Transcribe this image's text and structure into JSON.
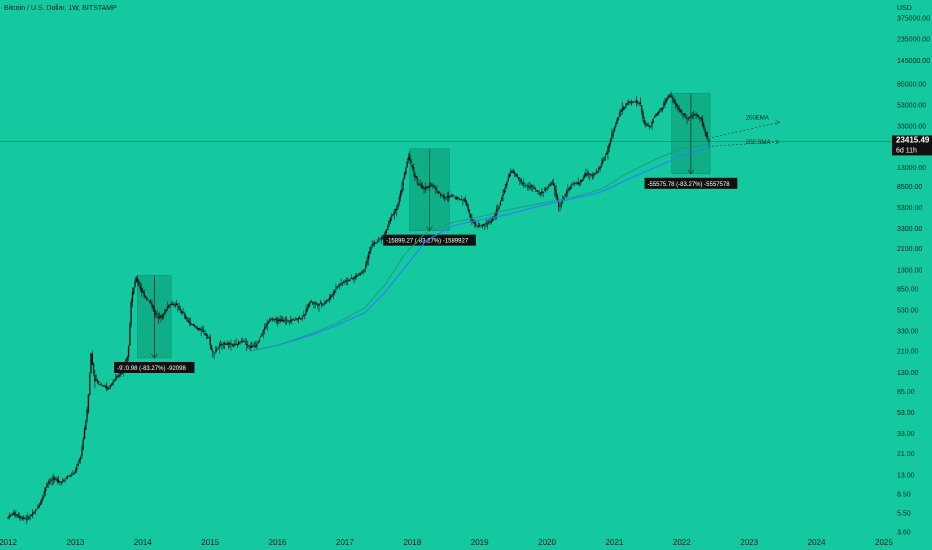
{
  "header": {
    "symbol": "Bitcoin / U.S. Dollar, 1W, BITSTAMP",
    "currency": "USD"
  },
  "colors": {
    "background": "#14c8a0",
    "candle": "#151515",
    "sma": "#2a7fff",
    "ema": "#1d9a7e",
    "box": "#0fae86",
    "label_bg": "#111111",
    "price_tag_bg": "#111111"
  },
  "price_tag": {
    "price": "23415.49",
    "countdown": "6d 11h"
  },
  "chart_data": {
    "type": "line",
    "yscale": "log",
    "ylim": [
      3.6,
      375000
    ],
    "xlim": [
      2012,
      2025
    ],
    "y_ticks": [
      "375000.00",
      "235000.00",
      "145000.00",
      "85000.00",
      "53000.00",
      "33000.00",
      "13000.00",
      "8500.00",
      "5300.00",
      "3300.00",
      "2100.00",
      "1300.00",
      "850.00",
      "530.00",
      "330.00",
      "210.00",
      "130.00",
      "85.00",
      "53.00",
      "33.00",
      "21.00",
      "13.00",
      "8.50",
      "5.50",
      "3.60"
    ],
    "x_ticks": [
      "2012",
      "2013",
      "2014",
      "2015",
      "2016",
      "2017",
      "2018",
      "2019",
      "2020",
      "2021",
      "2022",
      "2023",
      "2024",
      "2025"
    ],
    "current_price": 23415.49,
    "series": [
      {
        "role": "price",
        "points": [
          [
            2012.0,
            5
          ],
          [
            2012.1,
            5.5
          ],
          [
            2012.2,
            5
          ],
          [
            2012.3,
            4.9
          ],
          [
            2012.4,
            5.5
          ],
          [
            2012.5,
            7
          ],
          [
            2012.6,
            11
          ],
          [
            2012.7,
            12
          ],
          [
            2012.8,
            11
          ],
          [
            2012.9,
            12.5
          ],
          [
            2013.0,
            13.5
          ],
          [
            2013.1,
            20
          ],
          [
            2013.2,
            60
          ],
          [
            2013.25,
            200
          ],
          [
            2013.3,
            110
          ],
          [
            2013.4,
            100
          ],
          [
            2013.5,
            90
          ],
          [
            2013.6,
            110
          ],
          [
            2013.7,
            130
          ],
          [
            2013.8,
            200
          ],
          [
            2013.85,
            700
          ],
          [
            2013.92,
            1100
          ],
          [
            2014.0,
            800
          ],
          [
            2014.1,
            650
          ],
          [
            2014.15,
            600
          ],
          [
            2014.2,
            480
          ],
          [
            2014.3,
            450
          ],
          [
            2014.4,
            600
          ],
          [
            2014.5,
            600
          ],
          [
            2014.6,
            500
          ],
          [
            2014.7,
            400
          ],
          [
            2014.8,
            360
          ],
          [
            2014.9,
            330
          ],
          [
            2015.0,
            280
          ],
          [
            2015.05,
            200
          ],
          [
            2015.2,
            250
          ],
          [
            2015.4,
            240
          ],
          [
            2015.5,
            270
          ],
          [
            2015.6,
            230
          ],
          [
            2015.7,
            240
          ],
          [
            2015.8,
            330
          ],
          [
            2015.9,
            430
          ],
          [
            2016.0,
            420
          ],
          [
            2016.2,
            420
          ],
          [
            2016.4,
            450
          ],
          [
            2016.5,
            650
          ],
          [
            2016.6,
            600
          ],
          [
            2016.7,
            610
          ],
          [
            2016.8,
            700
          ],
          [
            2016.9,
            900
          ],
          [
            2017.0,
            1000
          ],
          [
            2017.1,
            1050
          ],
          [
            2017.2,
            1150
          ],
          [
            2017.3,
            1300
          ],
          [
            2017.4,
            2200
          ],
          [
            2017.5,
            2500
          ],
          [
            2017.6,
            2800
          ],
          [
            2017.7,
            4300
          ],
          [
            2017.8,
            5500
          ],
          [
            2017.9,
            11000
          ],
          [
            2017.96,
            17000
          ],
          [
            2018.0,
            14000
          ],
          [
            2018.1,
            9000
          ],
          [
            2018.2,
            8000
          ],
          [
            2018.3,
            9000
          ],
          [
            2018.4,
            7500
          ],
          [
            2018.5,
            6500
          ],
          [
            2018.6,
            7000
          ],
          [
            2018.7,
            6500
          ],
          [
            2018.8,
            6300
          ],
          [
            2018.9,
            4000
          ],
          [
            2018.96,
            3500
          ],
          [
            2019.1,
            3600
          ],
          [
            2019.2,
            4000
          ],
          [
            2019.3,
            5300
          ],
          [
            2019.45,
            11000
          ],
          [
            2019.5,
            12000
          ],
          [
            2019.6,
            10000
          ],
          [
            2019.7,
            8500
          ],
          [
            2019.8,
            8500
          ],
          [
            2019.9,
            7200
          ],
          [
            2020.0,
            8000
          ],
          [
            2020.1,
            9500
          ],
          [
            2020.2,
            5300
          ],
          [
            2020.3,
            7500
          ],
          [
            2020.4,
            9000
          ],
          [
            2020.5,
            9200
          ],
          [
            2020.6,
            11500
          ],
          [
            2020.7,
            10800
          ],
          [
            2020.8,
            13000
          ],
          [
            2020.9,
            18000
          ],
          [
            2021.0,
            30000
          ],
          [
            2021.1,
            45000
          ],
          [
            2021.2,
            55000
          ],
          [
            2021.3,
            58000
          ],
          [
            2021.4,
            55000
          ],
          [
            2021.45,
            36000
          ],
          [
            2021.55,
            32000
          ],
          [
            2021.6,
            40000
          ],
          [
            2021.7,
            47000
          ],
          [
            2021.8,
            62000
          ],
          [
            2021.85,
            67000
          ],
          [
            2021.95,
            50000
          ],
          [
            2022.0,
            46000
          ],
          [
            2022.1,
            38000
          ],
          [
            2022.2,
            43000
          ],
          [
            2022.3,
            40000
          ],
          [
            2022.35,
            30000
          ],
          [
            2022.42,
            23415
          ]
        ]
      },
      {
        "role": "200 SMA",
        "points": [
          [
            2015.6,
            210
          ],
          [
            2016.0,
            240
          ],
          [
            2016.5,
            300
          ],
          [
            2016.9,
            380
          ],
          [
            2017.3,
            500
          ],
          [
            2017.6,
            800
          ],
          [
            2017.9,
            1400
          ],
          [
            2018.2,
            2500
          ],
          [
            2018.6,
            3500
          ],
          [
            2019.0,
            4000
          ],
          [
            2019.4,
            4500
          ],
          [
            2019.9,
            5500
          ],
          [
            2020.4,
            6500
          ],
          [
            2020.8,
            7500
          ],
          [
            2021.2,
            10000
          ],
          [
            2021.6,
            13000
          ],
          [
            2022.0,
            17000
          ],
          [
            2022.42,
            20500
          ]
        ]
      },
      {
        "role": "200 EMA",
        "points": [
          [
            2015.6,
            210
          ],
          [
            2016.0,
            240
          ],
          [
            2016.5,
            310
          ],
          [
            2016.9,
            400
          ],
          [
            2017.3,
            560
          ],
          [
            2017.6,
            950
          ],
          [
            2017.9,
            1900
          ],
          [
            2018.2,
            3000
          ],
          [
            2018.6,
            3800
          ],
          [
            2019.0,
            4300
          ],
          [
            2019.4,
            5000
          ],
          [
            2019.9,
            5800
          ],
          [
            2020.4,
            6700
          ],
          [
            2020.8,
            8000
          ],
          [
            2021.2,
            11500
          ],
          [
            2021.6,
            15500
          ],
          [
            2022.0,
            20000
          ],
          [
            2022.42,
            22000
          ]
        ]
      }
    ],
    "drawdown_boxes": [
      {
        "x0": 2013.92,
        "x1": 2014.42,
        "y_top": 1150,
        "y_bottom": 180,
        "label": "-920.98 (-83.27%) -92098"
      },
      {
        "x0": 2017.96,
        "x1": 2018.55,
        "y_top": 19800,
        "y_bottom": 3150,
        "label": "-15899.27 (-83.27%) -1589927"
      },
      {
        "x0": 2021.85,
        "x1": 2022.42,
        "y_top": 69000,
        "y_bottom": 11300,
        "label": "-55575.78 (-83.27%) -5557578"
      }
    ],
    "annotations": [
      {
        "text": "200EMA",
        "x": 2022.95,
        "y": 38500,
        "arrow_from": [
          2022.45,
          25500
        ],
        "arrow_to": [
          2023.45,
          36000
        ]
      },
      {
        "text": "200 SMA",
        "x": 2022.95,
        "y": 22000,
        "arrow_from": [
          2022.45,
          21000
        ],
        "arrow_to": [
          2023.45,
          23200
        ]
      }
    ]
  }
}
